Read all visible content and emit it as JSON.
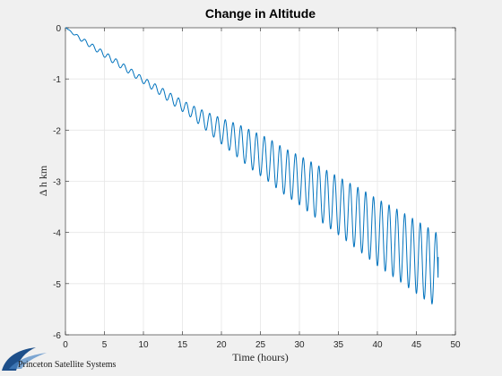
{
  "chart_data": {
    "type": "line",
    "title": "Change in Altitude",
    "xlabel": "Time (hours)",
    "ylabel": "Δ h km",
    "xlim": [
      0,
      50
    ],
    "ylim": [
      -6,
      0
    ],
    "xticks": [
      0,
      5,
      10,
      15,
      20,
      25,
      30,
      35,
      40,
      45,
      50
    ],
    "yticks": [
      0,
      -1,
      -2,
      -3,
      -4,
      -5,
      -6
    ],
    "grid": true,
    "legend": "none",
    "series": [
      {
        "color": "#0072BD",
        "x": [
          0,
          2,
          4,
          6,
          8,
          10,
          12,
          14,
          16,
          18,
          20,
          22,
          24,
          26,
          28,
          30,
          32,
          34,
          36,
          38,
          40,
          42,
          44,
          46,
          47.8
        ],
        "mean_y": [
          0,
          -0.22,
          -0.42,
          -0.62,
          -0.82,
          -1.03,
          -1.22,
          -1.43,
          -1.62,
          -1.82,
          -2.02,
          -2.2,
          -2.4,
          -2.58,
          -2.8,
          -2.98,
          -3.18,
          -3.38,
          -3.58,
          -3.78,
          -4.0,
          -4.18,
          -4.38,
          -4.58,
          -4.75
        ],
        "oscillation_amplitude": [
          0,
          0.04,
          0.05,
          0.06,
          0.06,
          0.06,
          0.08,
          0.1,
          0.12,
          0.18,
          0.25,
          0.32,
          0.38,
          0.42,
          0.45,
          0.48,
          0.52,
          0.55,
          0.58,
          0.62,
          0.65,
          0.68,
          0.7,
          0.72,
          0.72
        ],
        "oscillation_period_hours": 1.0,
        "end_y": -4.48
      }
    ]
  },
  "logo": {
    "text": "Princeton Satellite Systems",
    "color": "#1d4f8a"
  }
}
